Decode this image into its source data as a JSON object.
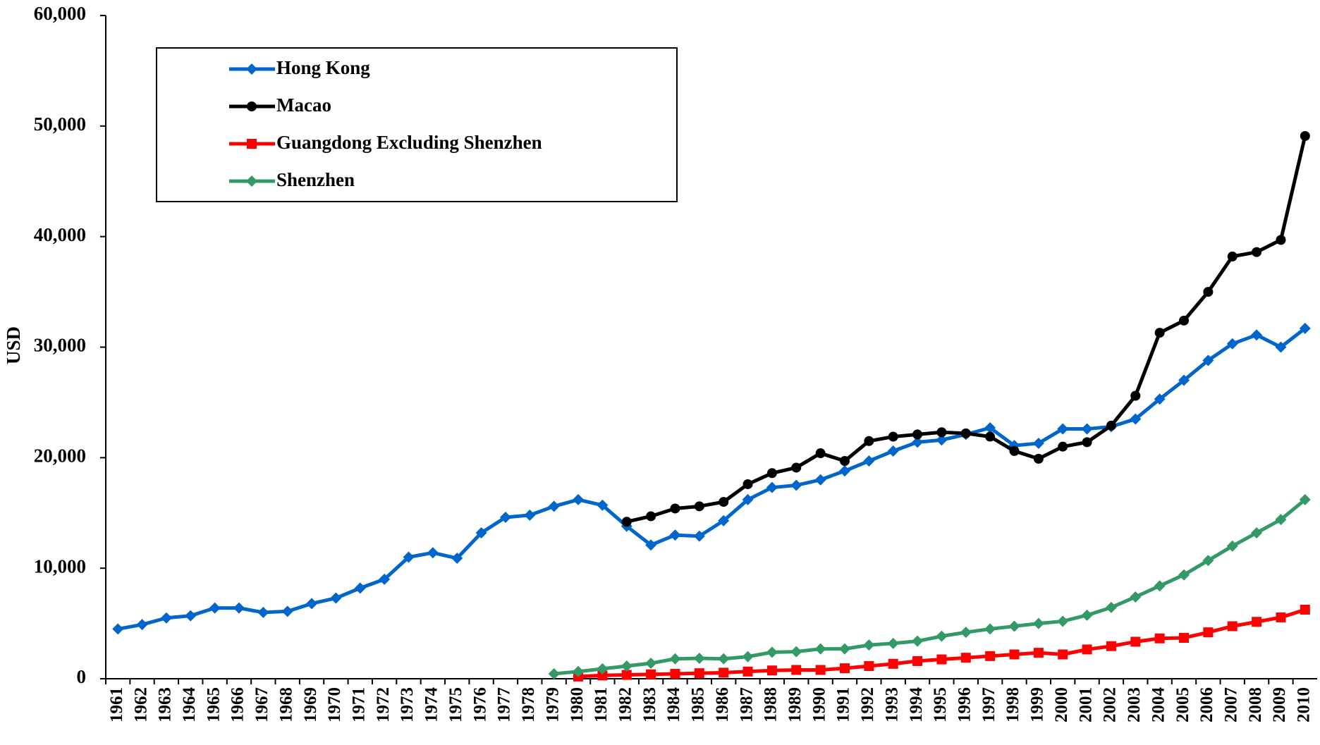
{
  "chart_data": {
    "type": "line",
    "y_label": "USD",
    "categories": [
      "1961",
      "1962",
      "1963",
      "1964",
      "1965",
      "1966",
      "1967",
      "1968",
      "1969",
      "1970",
      "1971",
      "1972",
      "1973",
      "1974",
      "1975",
      "1976",
      "1977",
      "1978",
      "1979",
      "1980",
      "1981",
      "1982",
      "1983",
      "1984",
      "1985",
      "1986",
      "1987",
      "1988",
      "1989",
      "1990",
      "1991",
      "1992",
      "1993",
      "1994",
      "1995",
      "1996",
      "1997",
      "1998",
      "1999",
      "2000",
      "2001",
      "2002",
      "2003",
      "2004",
      "2005",
      "2006",
      "2007",
      "2008",
      "2009",
      "2010"
    ],
    "series": [
      {
        "name": "Hong Kong",
        "color": "#0066cc",
        "marker": "diamond",
        "values": [
          4500,
          4900,
          5500,
          5700,
          6400,
          6400,
          6000,
          6100,
          6800,
          7300,
          8200,
          9000,
          11000,
          11400,
          10900,
          13200,
          14600,
          14800,
          15600,
          16200,
          15700,
          13800,
          12100,
          13000,
          12900,
          14300,
          16200,
          17300,
          17500,
          18000,
          18800,
          19700,
          20600,
          21400,
          21600,
          22100,
          22700,
          21100,
          21300,
          22600,
          22600,
          22800,
          23500,
          25300,
          27000,
          28800,
          30300,
          31100,
          30000,
          31700
        ]
      },
      {
        "name": "Macao",
        "color": "#000000",
        "marker": "circle",
        "values": [
          null,
          null,
          null,
          null,
          null,
          null,
          null,
          null,
          null,
          null,
          null,
          null,
          null,
          null,
          null,
          null,
          null,
          null,
          null,
          null,
          null,
          14200,
          14700,
          15400,
          15600,
          16000,
          17600,
          18600,
          19100,
          20400,
          19700,
          21500,
          21900,
          22100,
          22300,
          22200,
          21900,
          20600,
          19900,
          21000,
          21400,
          22900,
          25600,
          31300,
          32400,
          35000,
          38200,
          38600,
          39700,
          49100
        ]
      },
      {
        "name": "Guangdong Excluding Shenzhen",
        "color": "#ff0000",
        "marker": "square",
        "values": [
          null,
          null,
          null,
          null,
          null,
          null,
          null,
          null,
          null,
          null,
          null,
          null,
          null,
          null,
          null,
          null,
          null,
          null,
          null,
          200,
          300,
          350,
          400,
          450,
          500,
          550,
          650,
          750,
          800,
          800,
          950,
          1150,
          1350,
          1600,
          1750,
          1900,
          2050,
          2200,
          2350,
          2200,
          2650,
          2950,
          3350,
          3650,
          3700,
          4200,
          4750,
          5150,
          5550,
          6250
        ]
      },
      {
        "name": "Shenzhen",
        "color": "#339966",
        "marker": "diamond",
        "values": [
          null,
          null,
          null,
          null,
          null,
          null,
          null,
          null,
          null,
          null,
          null,
          null,
          null,
          null,
          null,
          null,
          null,
          null,
          450,
          650,
          900,
          1150,
          1400,
          1800,
          1850,
          1800,
          2000,
          2400,
          2450,
          2700,
          2700,
          3050,
          3200,
          3400,
          3850,
          4200,
          4500,
          4750,
          5000,
          5200,
          5750,
          6450,
          7400,
          8400,
          9400,
          10700,
          12000,
          13200,
          14400,
          16200
        ]
      }
    ],
    "ylim": [
      0,
      60000
    ],
    "yticks": [
      0,
      {
        "value": 10000,
        "label": "10,000"
      },
      {
        "value": 20000,
        "label": "20,000"
      },
      {
        "value": 30000,
        "label": "30,000"
      },
      {
        "value": 40000,
        "label": "40,000"
      },
      {
        "value": 50000,
        "label": "50,000"
      },
      {
        "value": 60000,
        "label": "60,000"
      }
    ],
    "legend": "upper left"
  }
}
